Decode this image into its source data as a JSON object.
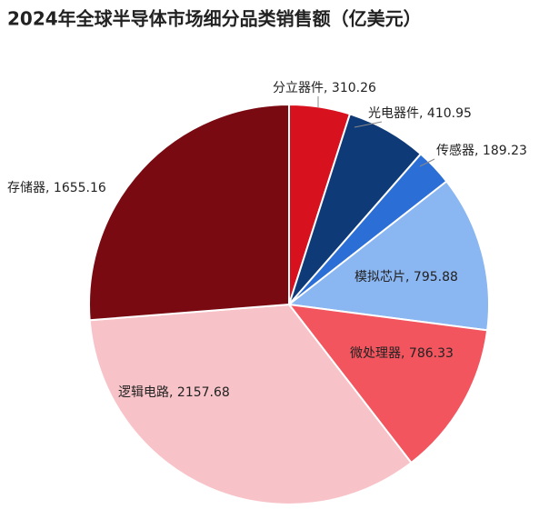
{
  "chart_data": {
    "type": "pie",
    "title": "2024年全球半导体市场细分品类销售额（亿美元）",
    "categories": [
      "分立器件",
      "光电器件",
      "传感器",
      "模拟芯片",
      "微处理器",
      "逻辑电路",
      "存储器"
    ],
    "values": [
      310.26,
      410.95,
      189.23,
      795.88,
      786.33,
      2157.68,
      1655.16
    ],
    "colors": [
      "#d8111f",
      "#0e3a78",
      "#2b6ed6",
      "#8ab6f2",
      "#f2555e",
      "#f8c3c8",
      "#7a0a12"
    ]
  }
}
